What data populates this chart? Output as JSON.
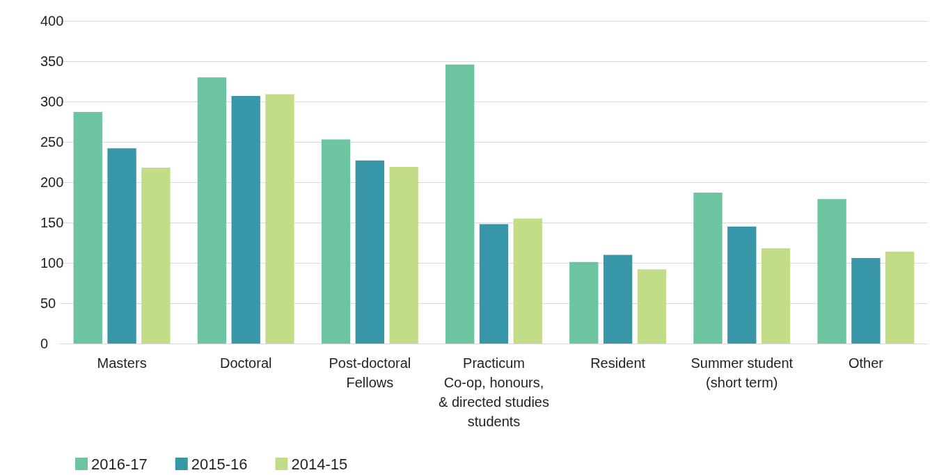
{
  "chart_data": {
    "type": "bar",
    "categories": [
      "Masters",
      "Doctoral",
      "Post-doctoral\nFellows",
      "Practicum\nCo-op, honours,\n& directed studies\nstudents",
      "Resident",
      "Summer student\n(short term)",
      "Other"
    ],
    "series": [
      {
        "name": "2016-17",
        "color": "#6cc5a0",
        "values": [
          287,
          330,
          253,
          346,
          101,
          187,
          179
        ]
      },
      {
        "name": "2015-16",
        "color": "#3797a9",
        "values": [
          242,
          307,
          227,
          148,
          110,
          145,
          106
        ]
      },
      {
        "name": "2014-15",
        "color": "#c2dc88",
        "values": [
          218,
          309,
          219,
          155,
          92,
          118,
          114
        ]
      }
    ],
    "ylim": [
      0,
      400
    ],
    "yticks": [
      0,
      50,
      100,
      150,
      200,
      250,
      300,
      350,
      400
    ],
    "grid": "y",
    "legend": "bottom left"
  }
}
